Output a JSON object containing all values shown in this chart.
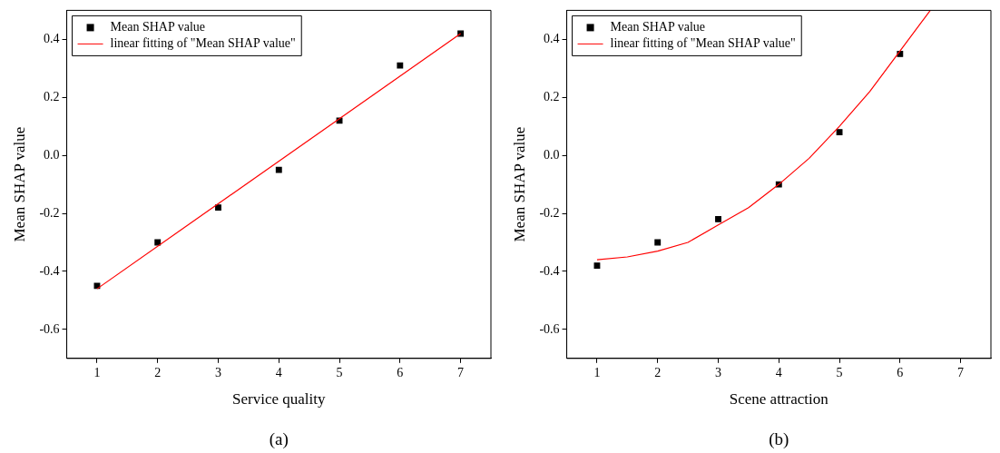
{
  "chart_data": [
    {
      "type": "scatter",
      "xlabel": "Service quality",
      "ylabel": "Mean SHAP value",
      "annotations": [
        "(a)"
      ],
      "xlim": [
        0.5,
        7.5
      ],
      "xticks": [
        1,
        2,
        3,
        4,
        5,
        6,
        7
      ],
      "ylim": [
        -0.7,
        0.5
      ],
      "yticks": [
        -0.6,
        -0.4,
        -0.2,
        {
          "value": 0,
          "label": "0.0"
        },
        0.2,
        0.4
      ],
      "grid": false,
      "legend": "top left",
      "series": [
        {
          "type": "scatter",
          "name": "Mean SHAP value",
          "color": "#000000",
          "marker": "square",
          "x": [
            1,
            2,
            3,
            4,
            5,
            6,
            7
          ],
          "values": [
            -0.45,
            -0.3,
            -0.18,
            -0.05,
            0.12,
            0.31,
            0.42
          ]
        },
        {
          "type": "line",
          "name": "linear fitting of \"Mean SHAP value\"",
          "color": "#ff0000",
          "marker": "none",
          "x": [
            1,
            7
          ],
          "values": [
            -0.46,
            0.42
          ]
        }
      ]
    },
    {
      "type": "scatter",
      "xlabel": "Scene attraction",
      "ylabel": "Mean SHAP value",
      "annotations": [
        "(b)"
      ],
      "xlim": [
        0.5,
        7.5
      ],
      "xticks": [
        1,
        2,
        3,
        4,
        5,
        6,
        7
      ],
      "ylim": [
        -0.7,
        0.5
      ],
      "yticks": [
        -0.6,
        -0.4,
        -0.2,
        {
          "value": 0,
          "label": "0.0"
        },
        0.2,
        0.4
      ],
      "grid": false,
      "legend": "top left",
      "series": [
        {
          "type": "scatter",
          "name": "Mean SHAP value",
          "color": "#000000",
          "marker": "square",
          "x": [
            1,
            2,
            3,
            4,
            5,
            6
          ],
          "values": [
            -0.38,
            -0.3,
            -0.22,
            -0.1,
            0.08,
            0.35
          ]
        },
        {
          "type": "line",
          "name": "linear fitting of \"Mean SHAP value\"",
          "color": "#ff0000",
          "marker": "none",
          "x": [
            1,
            1.5,
            2,
            2.5,
            3,
            3.5,
            4,
            4.5,
            5,
            5.5,
            6,
            6.5
          ],
          "values": [
            -0.36,
            -0.35,
            -0.33,
            -0.3,
            -0.24,
            -0.18,
            -0.1,
            -0.01,
            0.1,
            0.22,
            0.36,
            0.5
          ]
        }
      ]
    }
  ]
}
